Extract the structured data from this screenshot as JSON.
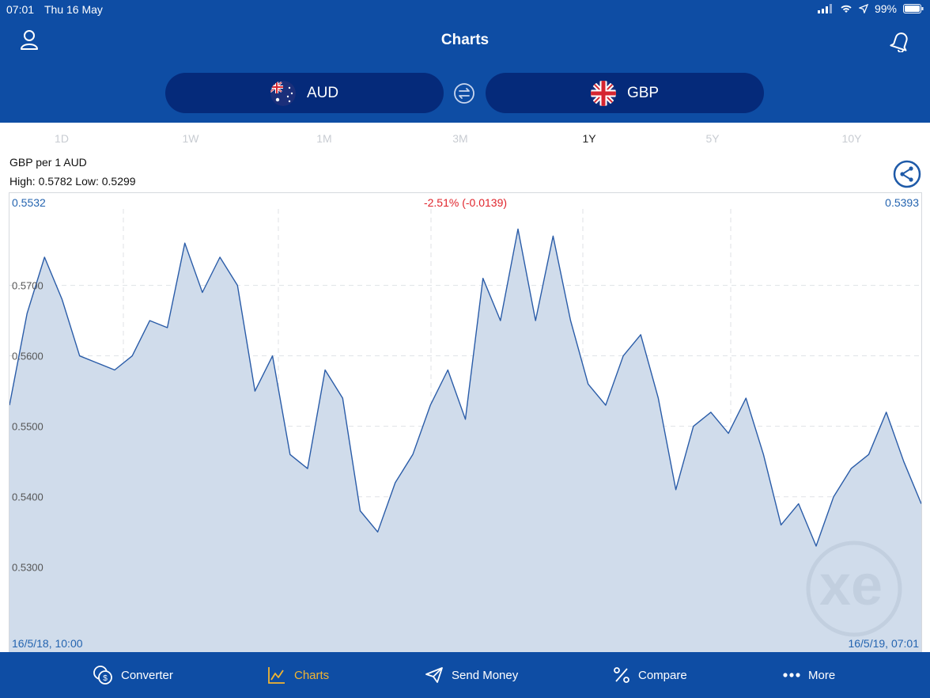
{
  "status": {
    "time": "07:01",
    "date": "Thu 16 May",
    "battery": "99%"
  },
  "header": {
    "title": "Charts"
  },
  "currency": {
    "from": "AUD",
    "to": "GBP"
  },
  "tabs": [
    {
      "label": "1D",
      "active": false
    },
    {
      "label": "1W",
      "active": false
    },
    {
      "label": "1M",
      "active": false
    },
    {
      "label": "3M",
      "active": false
    },
    {
      "label": "1Y",
      "active": true
    },
    {
      "label": "5Y",
      "active": false
    },
    {
      "label": "10Y",
      "active": false
    }
  ],
  "info": {
    "pair_label": "GBP per 1 AUD",
    "high_low": "High: 0.5782  Low: 0.5299"
  },
  "chart_corners": {
    "start_value": "0.5532",
    "end_value": "0.5393",
    "change": "-2.51% (-0.0139)",
    "start_date": "16/5/18, 10:00",
    "end_date": "16/5/19, 07:01"
  },
  "watermark": "xe",
  "bottom_nav": [
    {
      "label": "Converter",
      "icon": "converter-icon",
      "active": false
    },
    {
      "label": "Charts",
      "icon": "charts-icon",
      "active": true
    },
    {
      "label": "Send Money",
      "icon": "send-money-icon",
      "active": false
    },
    {
      "label": "Compare",
      "icon": "percent-icon",
      "active": false
    },
    {
      "label": "More",
      "icon": "more-dots-icon",
      "active": false
    }
  ],
  "colors": {
    "brand": "#0e4da4",
    "pill": "#052a7a",
    "line": "#2a5ca8",
    "fill": "#d0dceb",
    "accent": "#f2b531",
    "negative": "#e0242b"
  },
  "chart_data": {
    "type": "area",
    "x": [
      0,
      1,
      2,
      3,
      4,
      5,
      6,
      7,
      8,
      9,
      10,
      11,
      12,
      13,
      14,
      15,
      16,
      17,
      18,
      19,
      20,
      21,
      22,
      23,
      24,
      25,
      26,
      27,
      28,
      29,
      30,
      31,
      32,
      33,
      34,
      35,
      36,
      37,
      38,
      39,
      40,
      41,
      42,
      43,
      44,
      45,
      46,
      47,
      48,
      49,
      50,
      51,
      52
    ],
    "values": [
      0.553,
      0.566,
      0.574,
      0.568,
      0.56,
      0.559,
      0.558,
      0.56,
      0.565,
      0.564,
      0.576,
      0.569,
      0.574,
      0.57,
      0.555,
      0.56,
      0.546,
      0.544,
      0.558,
      0.554,
      0.538,
      0.535,
      0.542,
      0.546,
      0.553,
      0.558,
      0.551,
      0.571,
      0.565,
      0.578,
      0.565,
      0.577,
      0.565,
      0.556,
      0.553,
      0.56,
      0.563,
      0.554,
      0.541,
      0.55,
      0.552,
      0.549,
      0.554,
      0.546,
      0.536,
      0.539,
      0.533,
      0.54,
      0.544,
      0.546,
      0.552,
      0.545,
      0.539
    ],
    "ylim": [
      0.5202,
      0.5822
    ],
    "yticks": [
      "0.5700",
      "0.5600",
      "0.5500",
      "0.5400",
      "0.5300"
    ],
    "grid": true
  }
}
